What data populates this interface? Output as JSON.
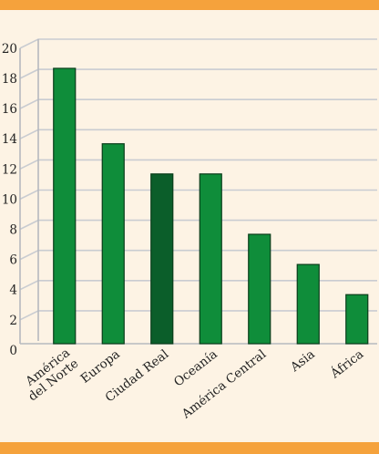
{
  "chart_data": {
    "type": "bar",
    "categories": [
      [
        "América",
        "del Norte"
      ],
      [
        "Europa"
      ],
      [
        "Ciudad Real"
      ],
      [
        "Oceanía"
      ],
      [
        "América Central"
      ],
      [
        "Asia"
      ],
      [
        "África"
      ]
    ],
    "values": [
      19,
      14,
      12,
      12,
      8,
      6,
      4
    ],
    "highlight_index": 2,
    "ylim": [
      0,
      20
    ],
    "yticks": [
      0,
      2,
      4,
      6,
      8,
      10,
      12,
      14,
      16,
      18,
      20
    ],
    "grid": true,
    "title": "",
    "xlabel": "",
    "ylabel": "",
    "colors": {
      "bar": "#0f8d3a",
      "bar_highlight": "#0b5e2a",
      "bar_edge": "#0a3d1a",
      "grid": "#c9ccd1",
      "axis": "#b6b9bf",
      "background": "#fdf3e4",
      "band": "#f5a23c"
    }
  }
}
